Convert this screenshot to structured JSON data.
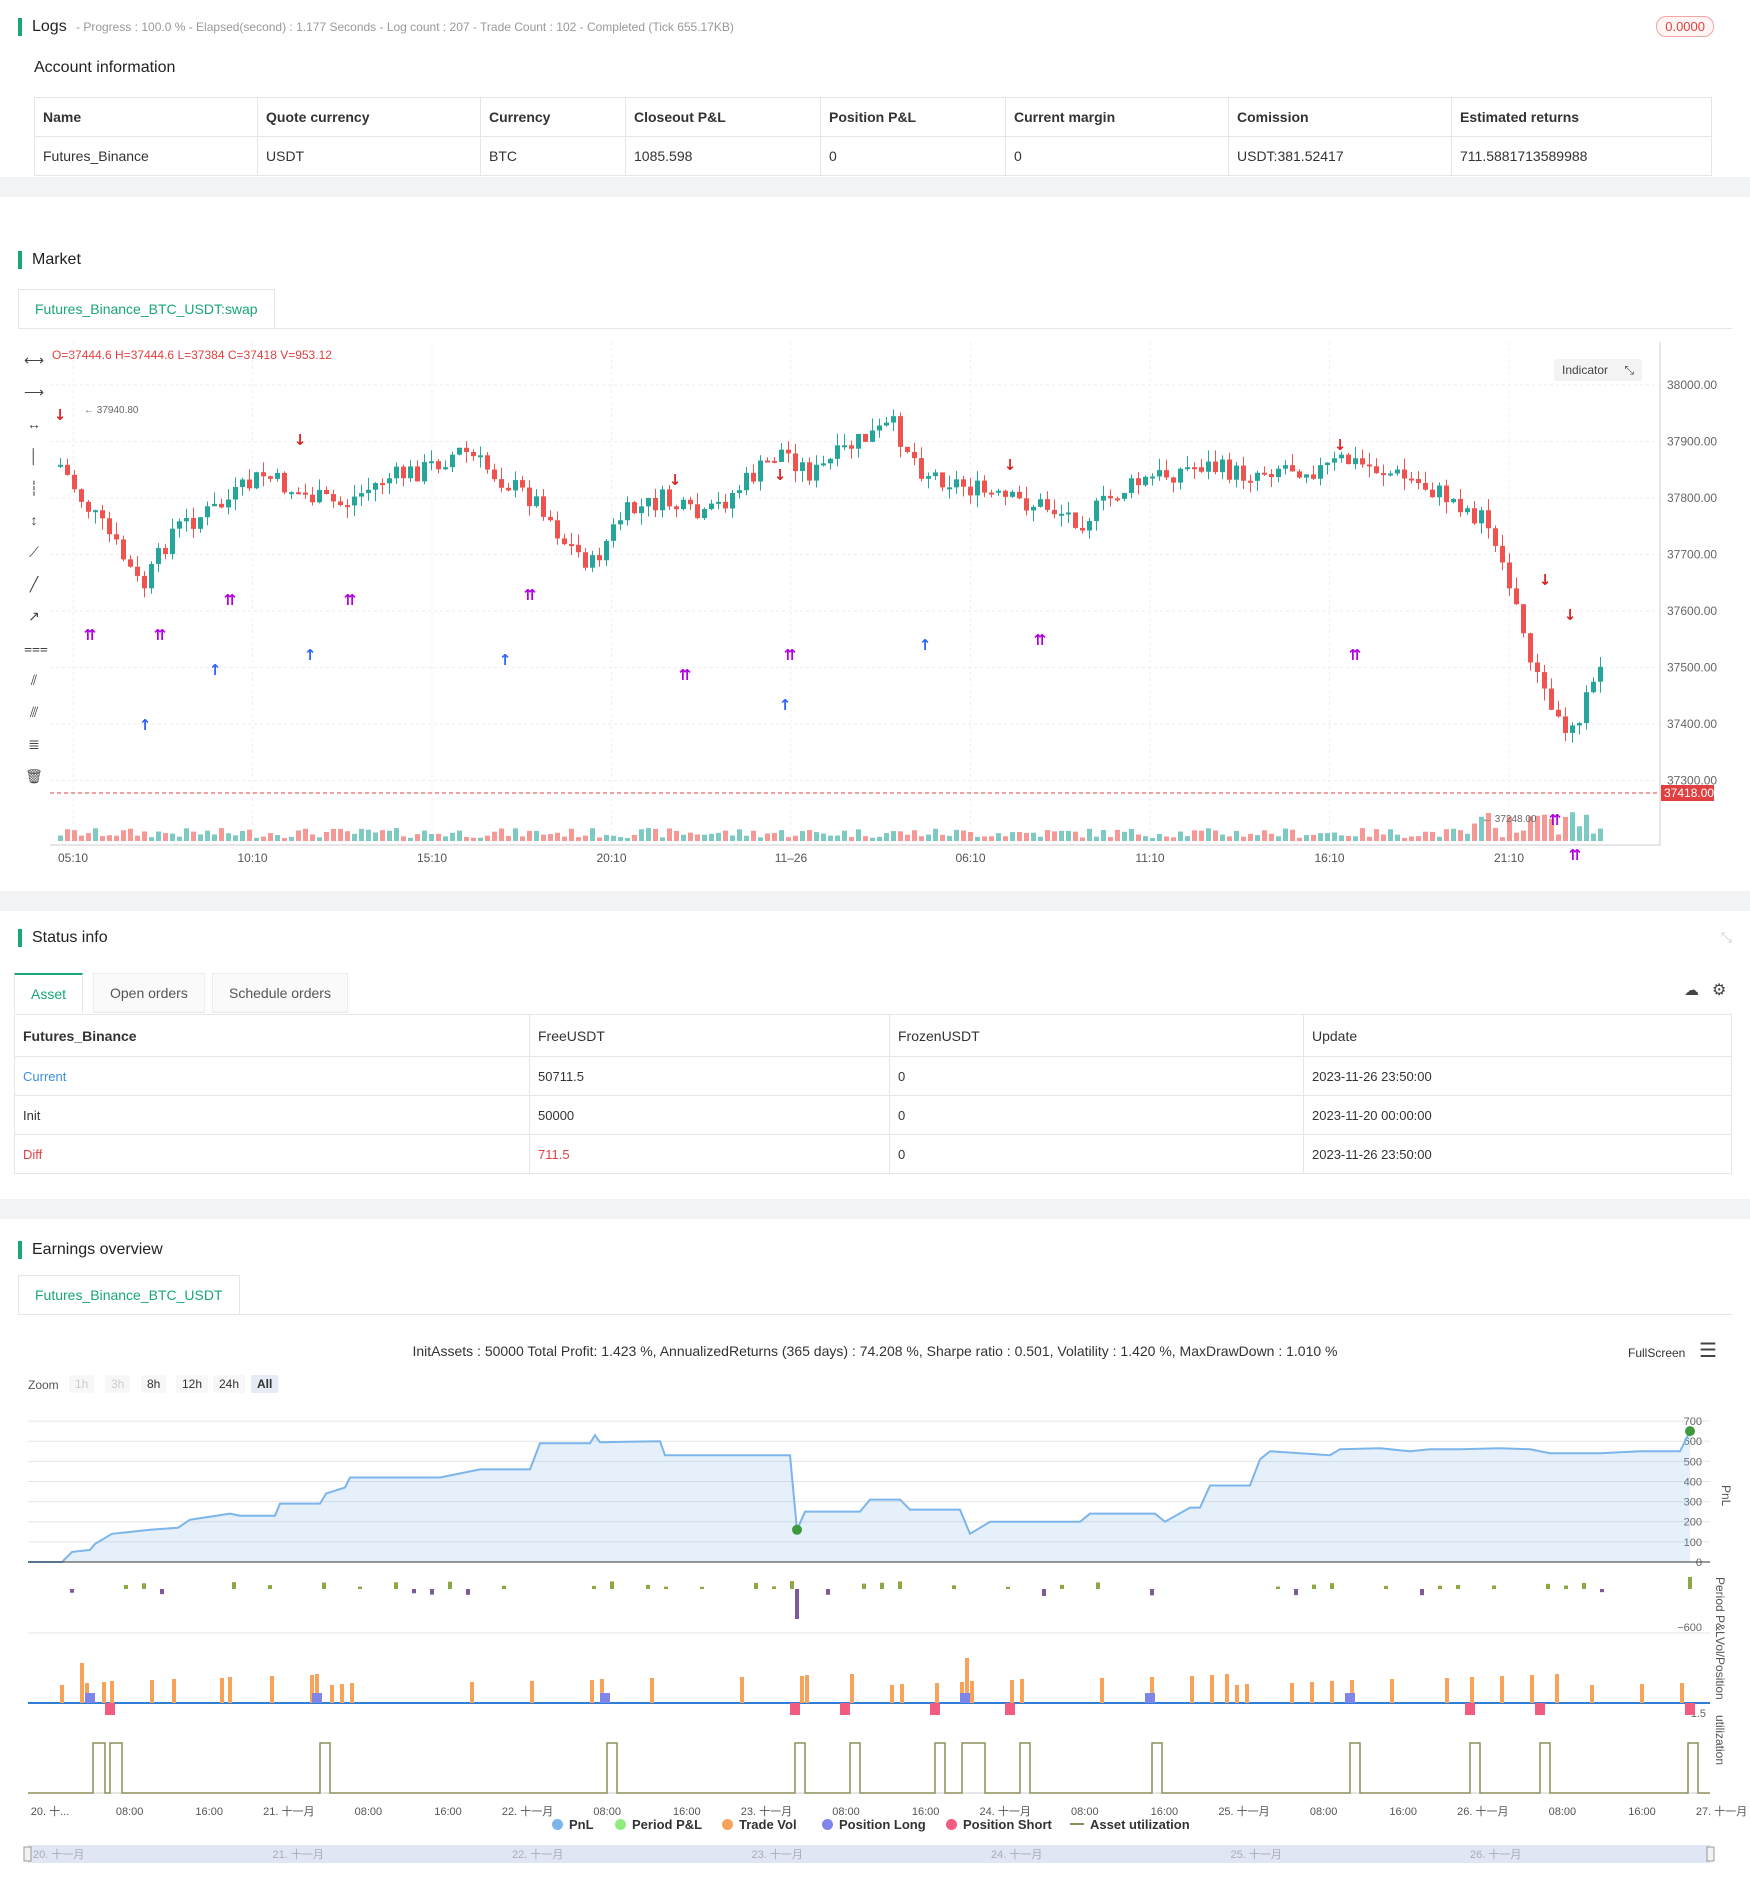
{
  "logs": {
    "title": "Logs",
    "summary": "- Progress : 100.0 % - Elapsed(second) : 1.177  Seconds - Log count : 207 - Trade Count : 102 - Completed (Tick 655.17KB)",
    "badge": "0.0000"
  },
  "account": {
    "title": "Account information",
    "headers": [
      "Name",
      "Quote currency",
      "Currency",
      "Closeout P&L",
      "Position P&L",
      "Current margin",
      "Comission",
      "Estimated returns"
    ],
    "row": [
      "Futures_Binance",
      "USDT",
      "BTC",
      "1085.598",
      "0",
      "0",
      "USDT:381.52417",
      "711.5881713589988"
    ]
  },
  "market": {
    "title": "Market",
    "tab": "Futures_Binance_BTC_USDT:swap",
    "ohlc": "O=37444.6  H=37444.6  L=37384  C=37418  V=953.12",
    "indicator_btn": "Indicator",
    "price_ticks": [
      "38000.00",
      "37900.00",
      "37800.00",
      "37700.00",
      "37600.00",
      "37500.00",
      "37400.00",
      "37300.00"
    ],
    "current_price": "37418.00",
    "high_label": "37940.80",
    "low_label": "37248.00",
    "time_ticks": [
      "05:10",
      "10:10",
      "15:10",
      "20:10",
      "11–26",
      "06:10",
      "11:10",
      "16:10",
      "21:10"
    ],
    "colors": {
      "up": "#26a69a",
      "down": "#ef5350",
      "long": "#2962ff",
      "short": "#e02020",
      "close": "#b000e0"
    }
  },
  "status": {
    "title": "Status info",
    "tabs": [
      "Asset",
      "Open orders",
      "Schedule orders"
    ],
    "headers": [
      "Futures_Binance",
      "FreeUSDT",
      "FrozenUSDT",
      "Update"
    ],
    "rows": [
      [
        "Current",
        "50711.5",
        "0",
        "2023-11-26 23:50:00"
      ],
      [
        "Init",
        "50000",
        "0",
        "2023-11-20 00:00:00"
      ],
      [
        "Diff",
        "711.5",
        "0",
        "2023-11-26 23:50:00"
      ]
    ]
  },
  "earnings": {
    "title": "Earnings overview",
    "tab": "Futures_Binance_BTC_USDT",
    "summary": "InitAssets : 50000 Total Profit: 1.423 %, AnnualizedReturns (365 days) : 74.208 %, Sharpe ratio : 0.501, Volatility : 1.420 %, MaxDrawDown : 1.010 %",
    "fullscreen": "FullScreen",
    "zoom_label": "Zoom",
    "zoom_buttons": [
      "1h",
      "3h",
      "8h",
      "12h",
      "24h",
      "All"
    ],
    "pnl_ticks": [
      "700",
      "600",
      "500",
      "400",
      "300",
      "200",
      "100",
      "0"
    ],
    "pnl_axis": "PnL",
    "period_axis": "Period P&L",
    "period_tick": "−600",
    "vol_axis": "Vol/Position",
    "vol_tick": "1.5",
    "util_axis": "utilization",
    "time_ticks": [
      "20. 十...",
      "08:00",
      "16:00",
      "21. 十一月",
      "08:00",
      "16:00",
      "22. 十一月",
      "08:00",
      "16:00",
      "23. 十一月",
      "08:00",
      "16:00",
      "24. 十一月",
      "08:00",
      "16:00",
      "25. 十一月",
      "08:00",
      "16:00",
      "26. 十一月",
      "08:00",
      "16:00",
      "27. 十一月"
    ],
    "navigator_ticks": [
      "20. 十一月",
      "21. 十一月",
      "22. 十一月",
      "23. 十一月",
      "24. 十一月",
      "25. 十一月",
      "26. 十一月"
    ],
    "legend": [
      {
        "label": "PnL",
        "color": "#7cb5ec"
      },
      {
        "label": "Period P&L",
        "color": "#90ed7d"
      },
      {
        "label": "Trade Vol",
        "color": "#f7a35c"
      },
      {
        "label": "Position Long",
        "color": "#8085e9"
      },
      {
        "label": "Position Short",
        "color": "#f15c80"
      },
      {
        "label": "Asset utilization",
        "color": "#8d8d5a"
      }
    ]
  }
}
